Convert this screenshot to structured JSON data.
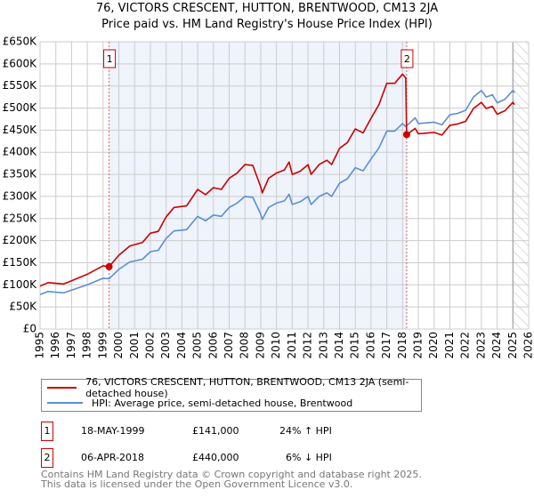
{
  "title_line1": "76, VICTORS CRESCENT, HUTTON, BRENTWOOD, CM13 2JA",
  "title_line2": "Price paid vs. HM Land Registry's House Price Index (HPI)",
  "colors": {
    "property": "#cc0000",
    "hpi": "#5b8fd4",
    "shade": "#eef3fc",
    "grid": "#cccccc"
  },
  "chart_data": {
    "type": "line",
    "title": "76, VICTORS CRESCENT, HUTTON, BRENTWOOD, CM13 2JA - Price paid vs. HM Land Registry's House Price Index (HPI)",
    "xlim": [
      1995,
      2026
    ],
    "ylim": [
      0,
      650000
    ],
    "grid": true,
    "x_ticks": [
      "1995",
      "1996",
      "1997",
      "1998",
      "1999",
      "2000",
      "2001",
      "2002",
      "2003",
      "2004",
      "2005",
      "2006",
      "2007",
      "2008",
      "2009",
      "2010",
      "2011",
      "2012",
      "2013",
      "2014",
      "2015",
      "2016",
      "2017",
      "2018",
      "2019",
      "2020",
      "2021",
      "2022",
      "2023",
      "2024",
      "2025",
      "2026"
    ],
    "y_ticks": [
      {
        "value": 0,
        "label": "£0"
      },
      {
        "value": 50000,
        "label": "£50K"
      },
      {
        "value": 100000,
        "label": "£100K"
      },
      {
        "value": 150000,
        "label": "£150K"
      },
      {
        "value": 200000,
        "label": "£200K"
      },
      {
        "value": 250000,
        "label": "£250K"
      },
      {
        "value": 300000,
        "label": "£300K"
      },
      {
        "value": 350000,
        "label": "£350K"
      },
      {
        "value": 400000,
        "label": "£400K"
      },
      {
        "value": 450000,
        "label": "£450K"
      },
      {
        "value": 500000,
        "label": "£500K"
      },
      {
        "value": 550000,
        "label": "£550K"
      },
      {
        "value": 600000,
        "label": "£600K"
      },
      {
        "value": 650000,
        "label": "£650K"
      }
    ],
    "x": [
      1995.0,
      1995.5,
      1996.5,
      1997,
      1998,
      1999,
      1999.38,
      2000,
      2000.7,
      2001.5,
      2002,
      2002.5,
      2003,
      2003.5,
      2004.3,
      2005,
      2005.5,
      2006,
      2006.5,
      2007,
      2007.5,
      2008,
      2008.5,
      2009,
      2009.1,
      2009.5,
      2010,
      2010.5,
      2010.8,
      2011,
      2011.5,
      2012,
      2012.2,
      2012.7,
      2013.2,
      2013.5,
      2014,
      2014.5,
      2015,
      2015.5,
      2016,
      2016.5,
      2017,
      2017.5,
      2018,
      2018.2,
      2018.26,
      2018.8,
      2019,
      2020,
      2020.5,
      2021,
      2021.5,
      2022,
      2022.5,
      2023,
      2023.3,
      2023.7,
      2024,
      2024.5,
      2025,
      2025.1
    ],
    "series": [
      {
        "name": "76, VICTORS CRESCENT, HUTTON, BRENTWOOD, CM13 2JA (semi-detached house)",
        "color": "#cc0000",
        "values": [
          97000,
          105000,
          102000,
          109000,
          124000,
          143000,
          141000,
          167000,
          188000,
          196000,
          217000,
          221000,
          254000,
          275000,
          279000,
          316000,
          304000,
          320000,
          316000,
          341000,
          353000,
          372000,
          370000,
          322000,
          308000,
          341000,
          353000,
          360000,
          378000,
          350000,
          357000,
          372000,
          350000,
          372000,
          382000,
          372000,
          409000,
          422000,
          453000,
          444000,
          477000,
          508000,
          556000,
          556000,
          577000,
          568000,
          440000,
          454000,
          442000,
          445000,
          439000,
          461000,
          464000,
          470000,
          499000,
          513000,
          499000,
          504000,
          486000,
          494000,
          513000,
          508000
        ]
      },
      {
        "name": "HPI: Average price, semi-detached house, Brentwood",
        "color": "#5b8fd4",
        "values": [
          78000,
          85000,
          82000,
          88000,
          100000,
          115000,
          114000,
          135000,
          152000,
          158000,
          175000,
          178000,
          205000,
          222000,
          225000,
          255000,
          245000,
          258000,
          255000,
          275000,
          285000,
          300000,
          298000,
          260000,
          248000,
          275000,
          285000,
          290000,
          305000,
          282000,
          288000,
          300000,
          282000,
          300000,
          308000,
          300000,
          330000,
          340000,
          365000,
          358000,
          385000,
          410000,
          448000,
          448000,
          465000,
          458000,
          460000,
          478000,
          465000,
          468000,
          462000,
          485000,
          488000,
          495000,
          525000,
          540000,
          525000,
          530000,
          512000,
          520000,
          540000,
          535000
        ]
      }
    ],
    "sales": [
      {
        "label": "1",
        "x": 1999.38,
        "value": 141000
      },
      {
        "label": "2",
        "x": 2018.26,
        "value": 440000
      }
    ],
    "shaded_range": [
      1999.38,
      2018.26
    ],
    "forecast_hatch_from": 2025.0
  },
  "legend": {
    "property": "76, VICTORS CRESCENT, HUTTON, BRENTWOOD, CM13 2JA (semi-detached house)",
    "hpi": "HPI: Average price, semi-detached house, Brentwood"
  },
  "transactions": [
    {
      "num": "1",
      "date": "18-MAY-1999",
      "price": "£141,000",
      "hpi": "24% ↑ HPI"
    },
    {
      "num": "2",
      "date": "06-APR-2018",
      "price": "£440,000",
      "hpi": "6% ↓ HPI"
    }
  ],
  "footer": {
    "line1": "Contains HM Land Registry data © Crown copyright and database right 2025.",
    "line2": "This data is licensed under the Open Government Licence v3.0."
  }
}
